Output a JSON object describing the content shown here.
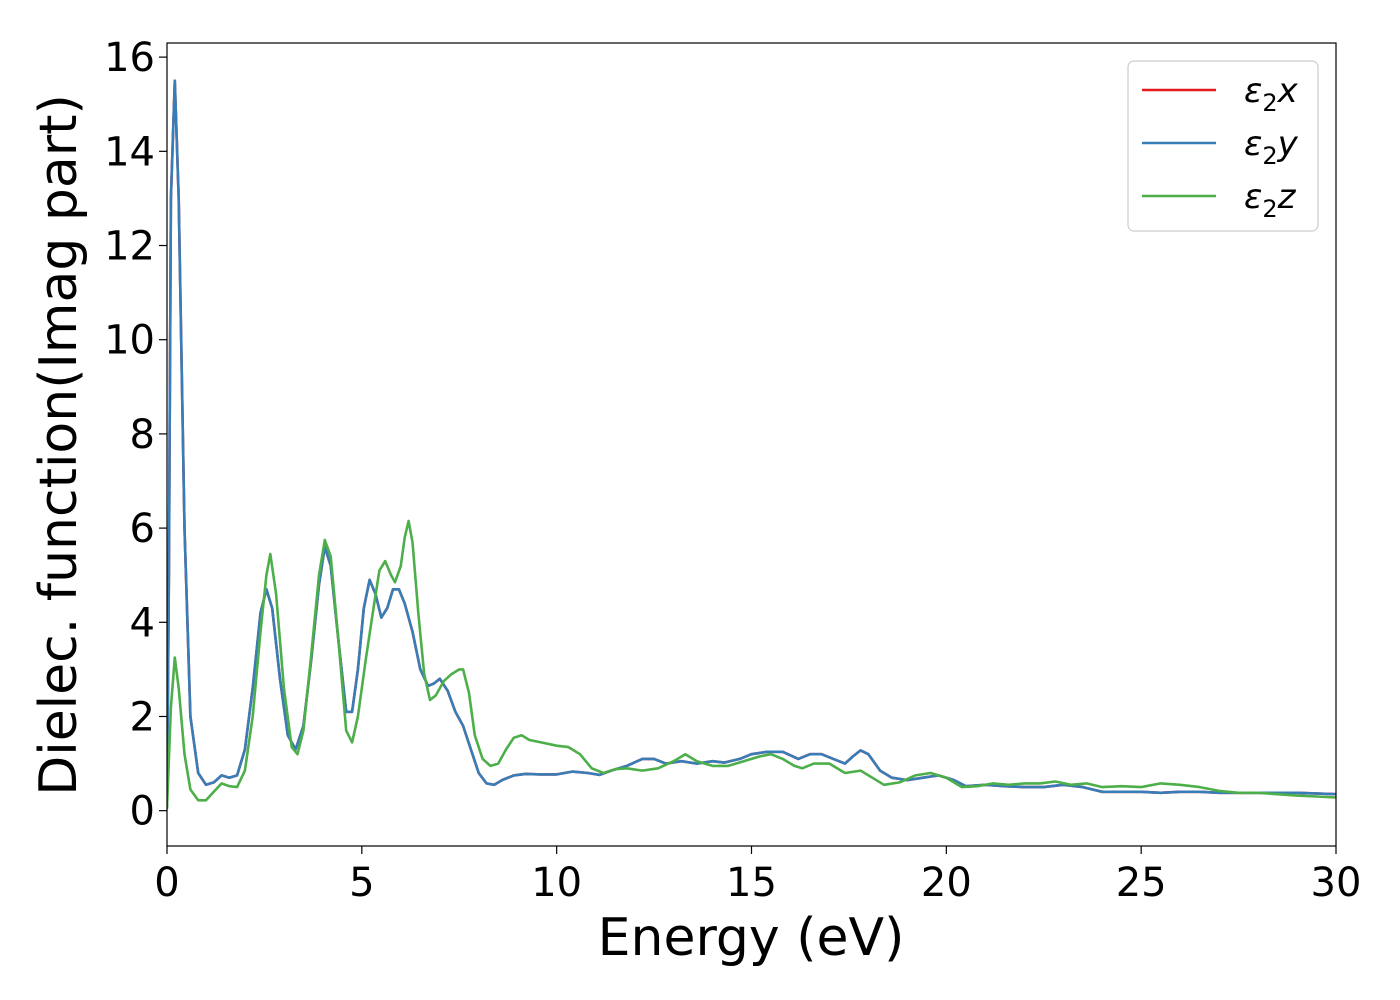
{
  "chart_data": {
    "type": "line",
    "title": "",
    "xlabel": "Energy (eV)",
    "ylabel": "Dielec. function(Imag part)",
    "xlim": [
      0,
      30
    ],
    "ylim": [
      -0.75,
      16.3
    ],
    "xticks": [
      0,
      5,
      10,
      15,
      20,
      25,
      30
    ],
    "yticks": [
      0,
      2,
      4,
      6,
      8,
      10,
      12,
      14,
      16
    ],
    "grid": false,
    "legend_position": "top-right",
    "series": [
      {
        "name": "ε2x",
        "sym": "ε",
        "sub": "2",
        "axis": "x",
        "color": "#e41a1c",
        "points": [
          [
            0,
            0.1
          ],
          [
            0.05,
            5
          ],
          [
            0.1,
            13
          ],
          [
            0.2,
            15.5
          ],
          [
            0.3,
            13
          ],
          [
            0.45,
            6
          ],
          [
            0.6,
            2
          ],
          [
            0.8,
            0.8
          ],
          [
            1,
            0.55
          ],
          [
            1.2,
            0.6
          ],
          [
            1.4,
            0.75
          ],
          [
            1.6,
            0.7
          ],
          [
            1.8,
            0.75
          ],
          [
            2.0,
            1.3
          ],
          [
            2.2,
            2.6
          ],
          [
            2.4,
            4.2
          ],
          [
            2.55,
            4.7
          ],
          [
            2.7,
            4.3
          ],
          [
            2.9,
            2.8
          ],
          [
            3.1,
            1.6
          ],
          [
            3.3,
            1.3
          ],
          [
            3.5,
            1.8
          ],
          [
            3.7,
            3.2
          ],
          [
            3.9,
            4.8
          ],
          [
            4.05,
            5.6
          ],
          [
            4.2,
            5.2
          ],
          [
            4.4,
            3.6
          ],
          [
            4.6,
            2.1
          ],
          [
            4.75,
            2.1
          ],
          [
            4.9,
            3.0
          ],
          [
            5.05,
            4.3
          ],
          [
            5.2,
            4.9
          ],
          [
            5.35,
            4.6
          ],
          [
            5.5,
            4.1
          ],
          [
            5.65,
            4.3
          ],
          [
            5.8,
            4.7
          ],
          [
            5.95,
            4.7
          ],
          [
            6.1,
            4.4
          ],
          [
            6.3,
            3.8
          ],
          [
            6.5,
            3.0
          ],
          [
            6.7,
            2.65
          ],
          [
            6.85,
            2.7
          ],
          [
            7.0,
            2.8
          ],
          [
            7.2,
            2.55
          ],
          [
            7.4,
            2.1
          ],
          [
            7.6,
            1.8
          ],
          [
            7.8,
            1.3
          ],
          [
            8.0,
            0.8
          ],
          [
            8.2,
            0.58
          ],
          [
            8.4,
            0.55
          ],
          [
            8.6,
            0.65
          ],
          [
            8.9,
            0.75
          ],
          [
            9.2,
            0.78
          ],
          [
            9.6,
            0.77
          ],
          [
            10.0,
            0.77
          ],
          [
            10.4,
            0.83
          ],
          [
            10.8,
            0.8
          ],
          [
            11.1,
            0.76
          ],
          [
            11.4,
            0.85
          ],
          [
            11.8,
            0.95
          ],
          [
            12.2,
            1.1
          ],
          [
            12.5,
            1.1
          ],
          [
            12.8,
            1.0
          ],
          [
            13.2,
            1.05
          ],
          [
            13.6,
            1.0
          ],
          [
            14.0,
            1.05
          ],
          [
            14.3,
            1.02
          ],
          [
            14.7,
            1.1
          ],
          [
            15.0,
            1.2
          ],
          [
            15.4,
            1.25
          ],
          [
            15.8,
            1.25
          ],
          [
            16.2,
            1.1
          ],
          [
            16.5,
            1.2
          ],
          [
            16.8,
            1.2
          ],
          [
            17.1,
            1.1
          ],
          [
            17.4,
            1.0
          ],
          [
            17.6,
            1.15
          ],
          [
            17.8,
            1.28
          ],
          [
            18.0,
            1.2
          ],
          [
            18.3,
            0.85
          ],
          [
            18.6,
            0.7
          ],
          [
            19.0,
            0.65
          ],
          [
            19.4,
            0.7
          ],
          [
            19.8,
            0.75
          ],
          [
            20.2,
            0.65
          ],
          [
            20.5,
            0.52
          ],
          [
            21.0,
            0.55
          ],
          [
            21.5,
            0.52
          ],
          [
            22.0,
            0.5
          ],
          [
            22.5,
            0.5
          ],
          [
            23.0,
            0.55
          ],
          [
            23.5,
            0.5
          ],
          [
            24.0,
            0.4
          ],
          [
            24.5,
            0.4
          ],
          [
            25.0,
            0.4
          ],
          [
            25.5,
            0.38
          ],
          [
            26.0,
            0.4
          ],
          [
            26.5,
            0.4
          ],
          [
            27.0,
            0.38
          ],
          [
            28.0,
            0.38
          ],
          [
            29.0,
            0.38
          ],
          [
            30.0,
            0.35
          ]
        ]
      },
      {
        "name": "ε2y",
        "sym": "ε",
        "sub": "2",
        "axis": "y",
        "color": "#377eb8",
        "points": [
          [
            0,
            0.1
          ],
          [
            0.05,
            5
          ],
          [
            0.1,
            13
          ],
          [
            0.2,
            15.5
          ],
          [
            0.3,
            13
          ],
          [
            0.45,
            6
          ],
          [
            0.6,
            2
          ],
          [
            0.8,
            0.8
          ],
          [
            1,
            0.55
          ],
          [
            1.2,
            0.6
          ],
          [
            1.4,
            0.75
          ],
          [
            1.6,
            0.7
          ],
          [
            1.8,
            0.75
          ],
          [
            2.0,
            1.3
          ],
          [
            2.2,
            2.6
          ],
          [
            2.4,
            4.2
          ],
          [
            2.55,
            4.7
          ],
          [
            2.7,
            4.3
          ],
          [
            2.9,
            2.8
          ],
          [
            3.1,
            1.6
          ],
          [
            3.3,
            1.3
          ],
          [
            3.5,
            1.8
          ],
          [
            3.7,
            3.2
          ],
          [
            3.9,
            4.8
          ],
          [
            4.05,
            5.6
          ],
          [
            4.2,
            5.2
          ],
          [
            4.4,
            3.6
          ],
          [
            4.6,
            2.1
          ],
          [
            4.75,
            2.1
          ],
          [
            4.9,
            3.0
          ],
          [
            5.05,
            4.3
          ],
          [
            5.2,
            4.9
          ],
          [
            5.35,
            4.6
          ],
          [
            5.5,
            4.1
          ],
          [
            5.65,
            4.3
          ],
          [
            5.8,
            4.7
          ],
          [
            5.95,
            4.7
          ],
          [
            6.1,
            4.4
          ],
          [
            6.3,
            3.8
          ],
          [
            6.5,
            3.0
          ],
          [
            6.7,
            2.65
          ],
          [
            6.85,
            2.7
          ],
          [
            7.0,
            2.8
          ],
          [
            7.2,
            2.55
          ],
          [
            7.4,
            2.1
          ],
          [
            7.6,
            1.8
          ],
          [
            7.8,
            1.3
          ],
          [
            8.0,
            0.8
          ],
          [
            8.2,
            0.58
          ],
          [
            8.4,
            0.55
          ],
          [
            8.6,
            0.65
          ],
          [
            8.9,
            0.75
          ],
          [
            9.2,
            0.78
          ],
          [
            9.6,
            0.77
          ],
          [
            10.0,
            0.77
          ],
          [
            10.4,
            0.83
          ],
          [
            10.8,
            0.8
          ],
          [
            11.1,
            0.76
          ],
          [
            11.4,
            0.85
          ],
          [
            11.8,
            0.95
          ],
          [
            12.2,
            1.1
          ],
          [
            12.5,
            1.1
          ],
          [
            12.8,
            1.0
          ],
          [
            13.2,
            1.05
          ],
          [
            13.6,
            1.0
          ],
          [
            14.0,
            1.05
          ],
          [
            14.3,
            1.02
          ],
          [
            14.7,
            1.1
          ],
          [
            15.0,
            1.2
          ],
          [
            15.4,
            1.25
          ],
          [
            15.8,
            1.25
          ],
          [
            16.2,
            1.1
          ],
          [
            16.5,
            1.2
          ],
          [
            16.8,
            1.2
          ],
          [
            17.1,
            1.1
          ],
          [
            17.4,
            1.0
          ],
          [
            17.6,
            1.15
          ],
          [
            17.8,
            1.28
          ],
          [
            18.0,
            1.2
          ],
          [
            18.3,
            0.85
          ],
          [
            18.6,
            0.7
          ],
          [
            19.0,
            0.65
          ],
          [
            19.4,
            0.7
          ],
          [
            19.8,
            0.75
          ],
          [
            20.2,
            0.65
          ],
          [
            20.5,
            0.52
          ],
          [
            21.0,
            0.55
          ],
          [
            21.5,
            0.52
          ],
          [
            22.0,
            0.5
          ],
          [
            22.5,
            0.5
          ],
          [
            23.0,
            0.55
          ],
          [
            23.5,
            0.5
          ],
          [
            24.0,
            0.4
          ],
          [
            24.5,
            0.4
          ],
          [
            25.0,
            0.4
          ],
          [
            25.5,
            0.38
          ],
          [
            26.0,
            0.4
          ],
          [
            26.5,
            0.4
          ],
          [
            27.0,
            0.38
          ],
          [
            28.0,
            0.38
          ],
          [
            29.0,
            0.38
          ],
          [
            30.0,
            0.35
          ]
        ]
      },
      {
        "name": "ε2z",
        "sym": "ε",
        "sub": "2",
        "axis": "z",
        "color": "#4daf4a",
        "points": [
          [
            0,
            0.05
          ],
          [
            0.1,
            2.2
          ],
          [
            0.2,
            3.25
          ],
          [
            0.3,
            2.6
          ],
          [
            0.45,
            1.2
          ],
          [
            0.6,
            0.45
          ],
          [
            0.8,
            0.22
          ],
          [
            1.0,
            0.22
          ],
          [
            1.2,
            0.4
          ],
          [
            1.4,
            0.58
          ],
          [
            1.6,
            0.52
          ],
          [
            1.8,
            0.5
          ],
          [
            2.0,
            0.85
          ],
          [
            2.2,
            2.0
          ],
          [
            2.4,
            3.8
          ],
          [
            2.55,
            5.0
          ],
          [
            2.65,
            5.45
          ],
          [
            2.8,
            4.6
          ],
          [
            3.0,
            2.6
          ],
          [
            3.2,
            1.35
          ],
          [
            3.35,
            1.2
          ],
          [
            3.5,
            1.7
          ],
          [
            3.7,
            3.3
          ],
          [
            3.9,
            5.0
          ],
          [
            4.05,
            5.75
          ],
          [
            4.2,
            5.4
          ],
          [
            4.4,
            3.6
          ],
          [
            4.6,
            1.7
          ],
          [
            4.75,
            1.45
          ],
          [
            4.9,
            2.0
          ],
          [
            5.1,
            3.2
          ],
          [
            5.3,
            4.3
          ],
          [
            5.45,
            5.1
          ],
          [
            5.6,
            5.3
          ],
          [
            5.75,
            5.0
          ],
          [
            5.85,
            4.85
          ],
          [
            6.0,
            5.2
          ],
          [
            6.1,
            5.8
          ],
          [
            6.2,
            6.15
          ],
          [
            6.3,
            5.7
          ],
          [
            6.45,
            4.2
          ],
          [
            6.6,
            2.9
          ],
          [
            6.75,
            2.35
          ],
          [
            6.9,
            2.45
          ],
          [
            7.1,
            2.75
          ],
          [
            7.3,
            2.9
          ],
          [
            7.5,
            3.0
          ],
          [
            7.6,
            3.0
          ],
          [
            7.75,
            2.5
          ],
          [
            7.9,
            1.6
          ],
          [
            8.1,
            1.1
          ],
          [
            8.3,
            0.95
          ],
          [
            8.5,
            1.0
          ],
          [
            8.7,
            1.3
          ],
          [
            8.9,
            1.55
          ],
          [
            9.1,
            1.6
          ],
          [
            9.3,
            1.5
          ],
          [
            9.6,
            1.45
          ],
          [
            10.0,
            1.38
          ],
          [
            10.3,
            1.35
          ],
          [
            10.6,
            1.2
          ],
          [
            10.9,
            0.9
          ],
          [
            11.2,
            0.8
          ],
          [
            11.5,
            0.88
          ],
          [
            11.8,
            0.9
          ],
          [
            12.2,
            0.85
          ],
          [
            12.6,
            0.9
          ],
          [
            13.0,
            1.05
          ],
          [
            13.3,
            1.2
          ],
          [
            13.6,
            1.05
          ],
          [
            14.0,
            0.95
          ],
          [
            14.4,
            0.95
          ],
          [
            14.8,
            1.05
          ],
          [
            15.2,
            1.15
          ],
          [
            15.5,
            1.2
          ],
          [
            15.8,
            1.1
          ],
          [
            16.1,
            0.95
          ],
          [
            16.3,
            0.9
          ],
          [
            16.6,
            1.0
          ],
          [
            17.0,
            1.0
          ],
          [
            17.4,
            0.8
          ],
          [
            17.8,
            0.85
          ],
          [
            18.1,
            0.7
          ],
          [
            18.4,
            0.55
          ],
          [
            18.8,
            0.6
          ],
          [
            19.2,
            0.75
          ],
          [
            19.6,
            0.8
          ],
          [
            20.0,
            0.7
          ],
          [
            20.4,
            0.5
          ],
          [
            20.8,
            0.52
          ],
          [
            21.2,
            0.58
          ],
          [
            21.6,
            0.55
          ],
          [
            22.0,
            0.58
          ],
          [
            22.4,
            0.58
          ],
          [
            22.8,
            0.62
          ],
          [
            23.2,
            0.55
          ],
          [
            23.6,
            0.58
          ],
          [
            24.0,
            0.5
          ],
          [
            24.5,
            0.52
          ],
          [
            25.0,
            0.5
          ],
          [
            25.5,
            0.58
          ],
          [
            26.0,
            0.55
          ],
          [
            26.5,
            0.5
          ],
          [
            27.0,
            0.42
          ],
          [
            27.5,
            0.38
          ],
          [
            28.0,
            0.38
          ],
          [
            28.5,
            0.35
          ],
          [
            29.0,
            0.32
          ],
          [
            29.5,
            0.3
          ],
          [
            30.0,
            0.28
          ]
        ]
      }
    ]
  }
}
